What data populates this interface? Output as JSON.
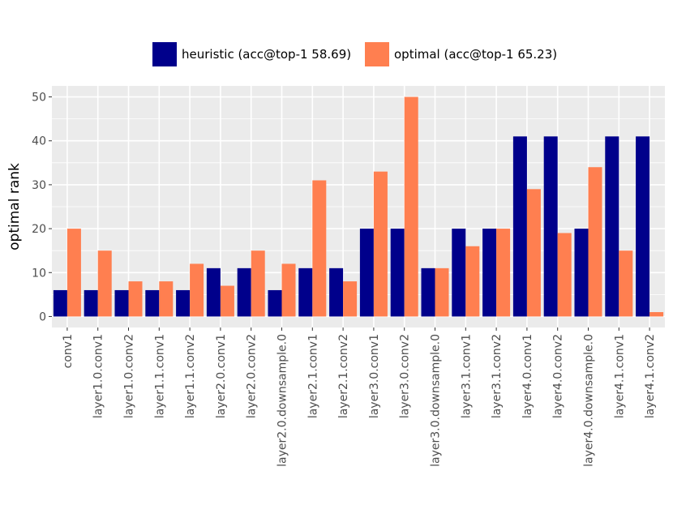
{
  "chart_data": {
    "type": "bar",
    "title": "",
    "xlabel": "",
    "ylabel": "optimal rank",
    "ylim": [
      -2.5,
      52.5
    ],
    "yticks": [
      0,
      10,
      20,
      30,
      40,
      50
    ],
    "grid": true,
    "legend_position": "top",
    "categories": [
      "conv1",
      "layer1.0.conv1",
      "layer1.0.conv2",
      "layer1.1.conv1",
      "layer1.1.conv2",
      "layer2.0.conv1",
      "layer2.0.conv2",
      "layer2.0.downsample.0",
      "layer2.1.conv1",
      "layer2.1.conv2",
      "layer3.0.conv1",
      "layer3.0.conv2",
      "layer3.0.downsample.0",
      "layer3.1.conv1",
      "layer3.1.conv2",
      "layer4.0.conv1",
      "layer4.0.conv2",
      "layer4.0.downsample.0",
      "layer4.1.conv1",
      "layer4.1.conv2"
    ],
    "series": [
      {
        "name": "heuristic (acc@top-1 58.69)",
        "color": "#00008b",
        "values": [
          6,
          6,
          6,
          6,
          6,
          11,
          11,
          6,
          11,
          11,
          20,
          20,
          11,
          20,
          20,
          41,
          41,
          20,
          41,
          41
        ]
      },
      {
        "name": "optimal (acc@top-1 65.23)",
        "color": "#ff7f50",
        "values": [
          20,
          15,
          8,
          8,
          12,
          7,
          15,
          12,
          31,
          8,
          33,
          50,
          11,
          16,
          20,
          29,
          19,
          34,
          15,
          1
        ]
      }
    ]
  }
}
